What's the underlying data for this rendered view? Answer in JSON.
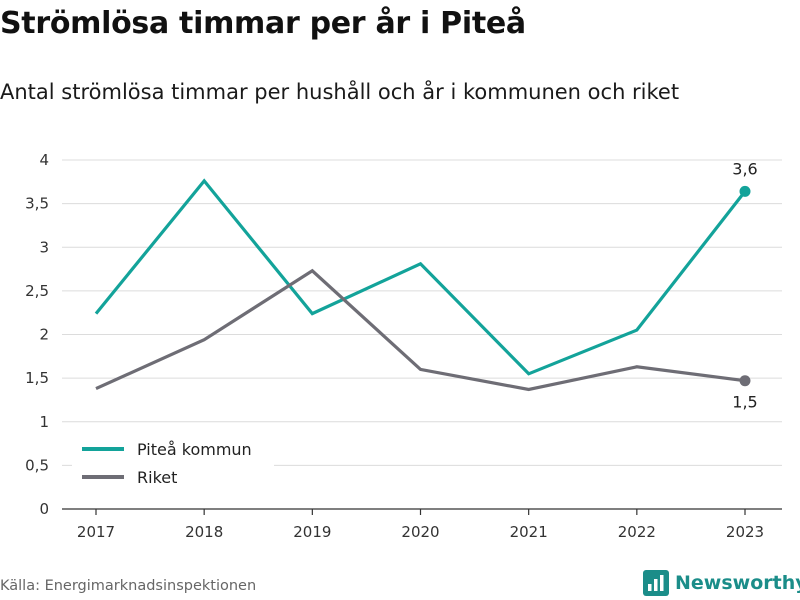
{
  "header": {
    "title": "Strömlösa timmar per år i Piteå",
    "subtitle": "Antal strömlösa timmar per hushåll och år i kommunen och riket"
  },
  "footer": {
    "source": "Källa: Energimarknadsinspektionen",
    "brand": "Newsworthy",
    "brand_icon": "bar-chart-logo-icon"
  },
  "colors": {
    "pitea": "#13a39a",
    "riket": "#6e6d75",
    "grid": "#dcdcdc",
    "brand": "#1b8d89"
  },
  "chart_data": {
    "type": "line",
    "x": [
      "2017",
      "2018",
      "2019",
      "2020",
      "2021",
      "2022",
      "2023"
    ],
    "series": [
      {
        "name": "Piteå kommun",
        "values": [
          2.24,
          3.76,
          2.24,
          2.81,
          1.55,
          2.05,
          3.64
        ]
      },
      {
        "name": "Riket",
        "values": [
          1.38,
          1.94,
          2.73,
          1.6,
          1.37,
          1.63,
          1.47
        ]
      }
    ],
    "ylim": [
      0,
      4
    ],
    "yticks": [
      0,
      0.5,
      1,
      1.5,
      2,
      2.5,
      3,
      3.5,
      4
    ],
    "ytick_labels": [
      "0",
      "0,5",
      "1",
      "1,5",
      "2",
      "2,5",
      "3",
      "3,5",
      "4"
    ],
    "end_labels": [
      "3,6",
      "1,5"
    ],
    "xlabel": "",
    "ylabel": "",
    "grid": true,
    "legend_position": "bottom-left"
  }
}
